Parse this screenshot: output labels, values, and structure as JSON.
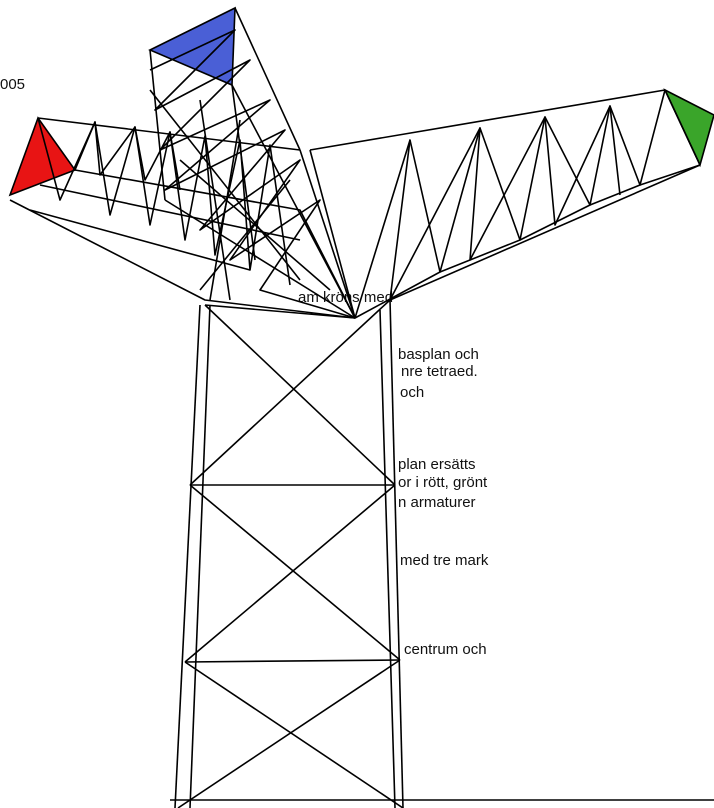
{
  "page_number_fragment": "005",
  "text_fragments": [
    "am kröns med",
    "basplan och",
    "nre tetraed.",
    "och",
    "plan ersätts",
    "or i rött, grönt",
    "n armaturer",
    "med tre mark",
    "centrum och"
  ]
}
